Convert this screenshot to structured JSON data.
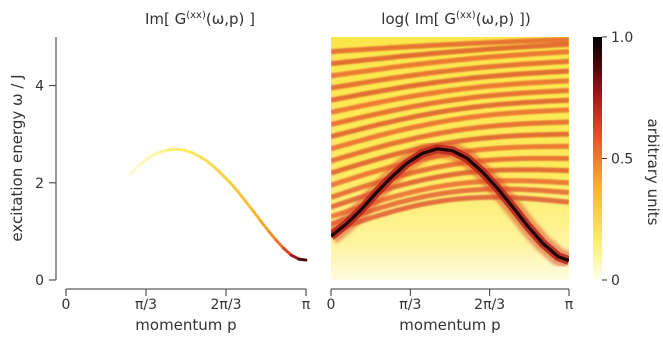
{
  "chart_data": [
    {
      "type": "line",
      "title": "Im[ G^(xx)(ω,p) ]",
      "title_main": "Im[ G",
      "title_sup": "(xx)",
      "title_tail": "(ω,p) ]",
      "xlabel": "momentum p",
      "ylabel": "excitation energy ω / J",
      "xlim": [
        0,
        3.1416
      ],
      "ylim": [
        0,
        5
      ],
      "x_ticks": [
        0,
        1.0472,
        2.0944,
        3.1416
      ],
      "x_tick_labels": [
        "0",
        "π/3",
        "2π/3",
        "π"
      ],
      "y_ticks": [
        0,
        2,
        4
      ],
      "y_tick_labels": [
        "0",
        "2",
        "4"
      ],
      "grid": false,
      "series": [
        {
          "x": [
            0.84,
            0.95,
            1.05,
            1.15,
            1.25,
            1.35,
            1.45,
            1.55,
            1.65,
            1.75,
            1.85,
            1.95,
            2.05,
            2.15,
            2.25,
            2.35,
            2.45,
            2.55,
            2.65,
            2.75,
            2.85,
            2.95,
            3.05,
            3.14
          ],
          "y": [
            2.18,
            2.35,
            2.48,
            2.58,
            2.64,
            2.68,
            2.69,
            2.67,
            2.62,
            2.54,
            2.44,
            2.31,
            2.16,
            2.0,
            1.82,
            1.62,
            1.42,
            1.21,
            1.01,
            0.82,
            0.65,
            0.51,
            0.43,
            0.41
          ],
          "intensity": [
            0.03,
            0.05,
            0.07,
            0.09,
            0.11,
            0.13,
            0.15,
            0.17,
            0.19,
            0.21,
            0.23,
            0.25,
            0.27,
            0.29,
            0.31,
            0.33,
            0.36,
            0.39,
            0.43,
            0.48,
            0.56,
            0.68,
            0.82,
            0.95
          ]
        }
      ]
    },
    {
      "type": "heatmap",
      "title": "log( Im[ G^(xx)(ω,p) ])",
      "title_main": "log( Im[ G",
      "title_sup": "(xx)",
      "title_tail": "(ω,p) ])",
      "xlabel": "momentum p",
      "xlim": [
        0,
        3.1416
      ],
      "ylim": [
        0,
        5
      ],
      "x_ticks": [
        0,
        1.0472,
        2.0944,
        3.1416
      ],
      "x_tick_labels": [
        "0",
        "π/3",
        "2π/3",
        "π"
      ],
      "main_band": {
        "x": [
          0.0,
          0.2,
          0.4,
          0.6,
          0.8,
          1.0,
          1.2,
          1.4,
          1.6,
          1.8,
          2.0,
          2.2,
          2.4,
          2.6,
          2.8,
          3.0,
          3.14
        ],
        "y": [
          0.9,
          1.15,
          1.45,
          1.8,
          2.12,
          2.4,
          2.6,
          2.7,
          2.66,
          2.5,
          2.22,
          1.88,
          1.5,
          1.1,
          0.75,
          0.48,
          0.4
        ],
        "intensity": 0.95
      },
      "upper_bands_left_y": [
        1.0,
        1.15,
        1.3,
        1.5,
        1.7,
        1.95,
        2.2,
        2.45,
        2.7,
        2.95,
        3.2,
        3.45,
        3.7,
        3.95,
        4.2,
        4.45,
        4.7
      ],
      "upper_bands_right_y": [
        1.6,
        1.8,
        2.0,
        2.25,
        2.5,
        2.75,
        3.0,
        3.25,
        3.5,
        3.7,
        3.9,
        4.1,
        4.3,
        4.5,
        4.7,
        4.85,
        4.95
      ],
      "upper_band_intensity": 0.62
    }
  ],
  "colorbar": {
    "label": "arbitrary units",
    "range": [
      0,
      1
    ],
    "ticks": [
      0,
      0.5,
      1
    ],
    "tick_labels": [
      "0",
      "0.5",
      "1.0"
    ],
    "colors": [
      "#fffff2",
      "#fbf06a",
      "#f6b52e",
      "#e7562a",
      "#a6141c",
      "#3c0508",
      "#000000"
    ]
  }
}
